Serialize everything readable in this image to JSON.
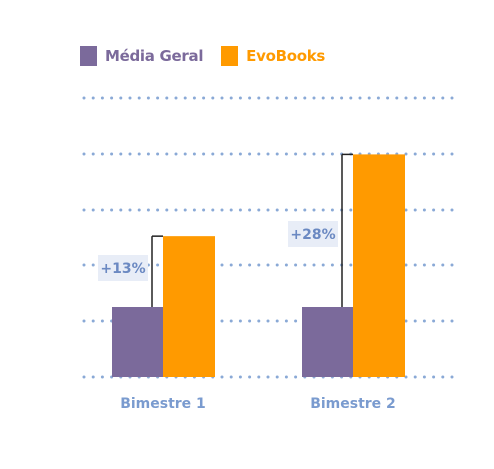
{
  "chart_data": {
    "type": "bar",
    "categories": [
      "Bimestre 1",
      "Bimestre 2"
    ],
    "series": [
      {
        "name": "Média Geral",
        "color": "#7b6a9b",
        "values": [
          1.0,
          1.0
        ]
      },
      {
        "name": "EvoBooks",
        "color": "#ff9a00",
        "values": [
          1.13,
          1.28
        ]
      }
    ],
    "annotations": [
      "+13%",
      "+28%"
    ],
    "grid": true,
    "legend_position": "top-left"
  },
  "colors": {
    "grid": "#8aa9d6",
    "label": "#7a9bcf",
    "annotation_bg": "#e8edf7",
    "annotation_text": "#6b89c2",
    "connector": "#222222"
  }
}
